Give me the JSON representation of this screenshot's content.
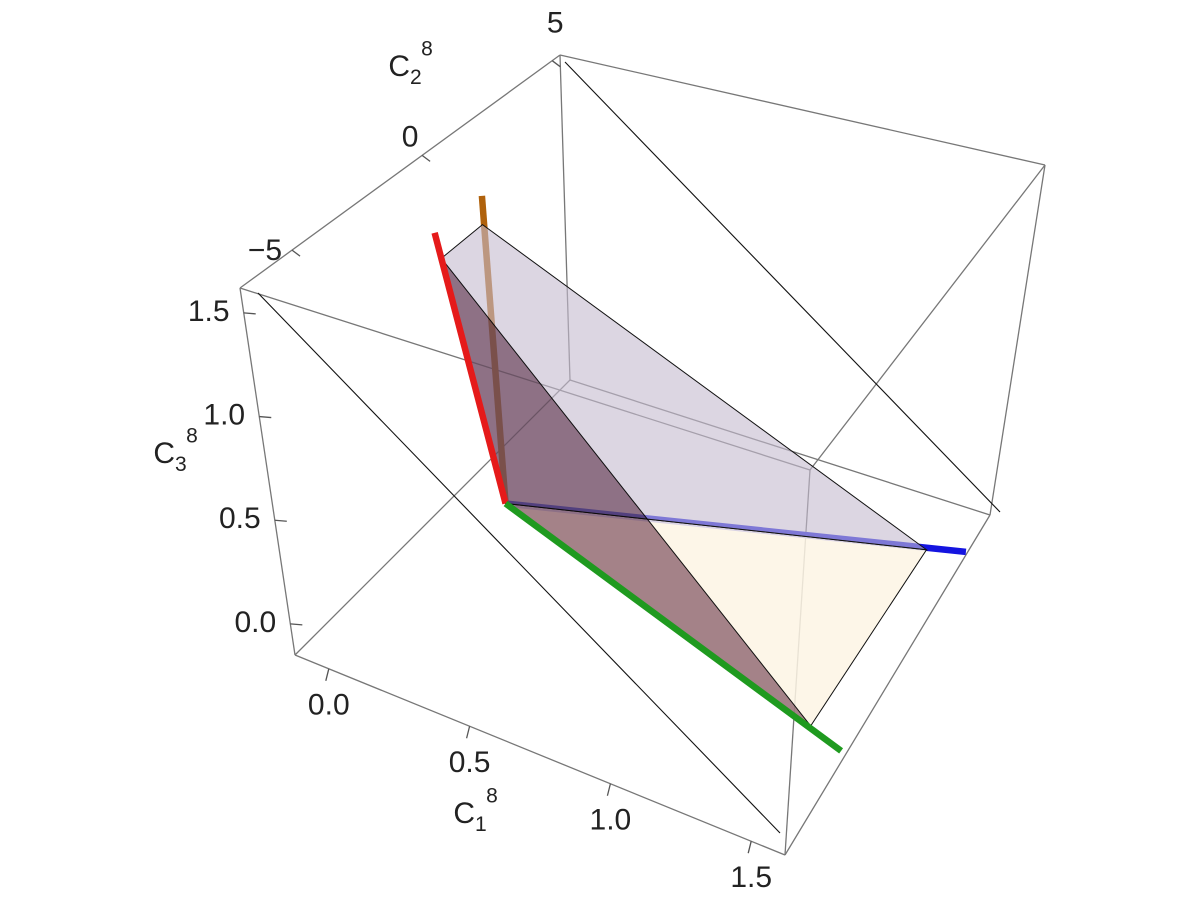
{
  "chart_data": {
    "type": "line3d",
    "x_label": {
      "symbol": "C",
      "subscript": "1",
      "superscript": "8"
    },
    "y_label": {
      "symbol": "C",
      "subscript": "2",
      "superscript": "8"
    },
    "z_label": {
      "symbol": "C",
      "subscript": "3",
      "superscript": "8"
    },
    "xlim": [
      -0.12,
      1.62
    ],
    "ylim": [
      -7,
      5.3
    ],
    "zlim": [
      -0.15,
      1.62
    ],
    "xticks": [
      {
        "value": 0,
        "label": "0.0"
      },
      {
        "value": 0.5,
        "label": "0.5"
      },
      {
        "value": 1,
        "label": "1.0"
      },
      {
        "value": 1.5,
        "label": "1.5"
      }
    ],
    "yticks": [
      {
        "value": -5,
        "label": "−5"
      },
      0,
      5
    ],
    "zticks": [
      {
        "value": 0,
        "label": "0.0"
      },
      {
        "value": 0.5,
        "label": "0.5"
      },
      {
        "value": 1,
        "label": "1.0"
      },
      {
        "value": 1.5,
        "label": "1.5"
      }
    ],
    "series": [
      {
        "color": "#b0620c",
        "front": false,
        "x": [
          0.48,
          0.04
        ],
        "y": [
          -4.54,
          0.38
        ],
        "z": [
          0.63,
          1.44
        ]
      },
      {
        "color": "#1414e0",
        "front": false,
        "x": [
          0.48,
          1.62
        ],
        "y": [
          -4.54,
          3.82
        ],
        "z": [
          0.63,
          -0.13
        ]
      },
      {
        "color": "#e51a1a",
        "front": true,
        "x": [
          0.48,
          -0.02
        ],
        "y": [
          -4.54,
          -0.85
        ],
        "z": [
          0.63,
          1.35
        ]
      },
      {
        "color": "#1f9a1f",
        "front": true,
        "x": [
          0.48,
          1.6
        ],
        "y": [
          -4.54,
          -3.31
        ],
        "z": [
          0.63,
          -0.15
        ]
      }
    ],
    "surfaces": [
      {
        "color": "#fdf5e4",
        "opacity": 0.85,
        "blend": "normal",
        "x": [
          0.48,
          1.51,
          1.49
        ],
        "y": [
          -4.54,
          2.98,
          -3.43
        ],
        "z": [
          0.63,
          -0.05,
          -0.07
        ]
      },
      {
        "color": "#c5bbcf",
        "opacity": 0.6,
        "blend": "normal",
        "x": [
          0.03,
          0.08,
          1.51,
          0.48
        ],
        "y": [
          -1.22,
          -0.11,
          2.98,
          -4.54
        ],
        "z": [
          1.28,
          1.36,
          -0.05,
          0.63
        ]
      },
      {
        "color": "#a58796",
        "opacity": 1,
        "blend": "multiply",
        "x": [
          0.03,
          0.48,
          1.49
        ],
        "y": [
          -1.22,
          -4.54,
          -3.43
        ],
        "z": [
          1.28,
          0.63,
          -0.07
        ]
      }
    ]
  }
}
